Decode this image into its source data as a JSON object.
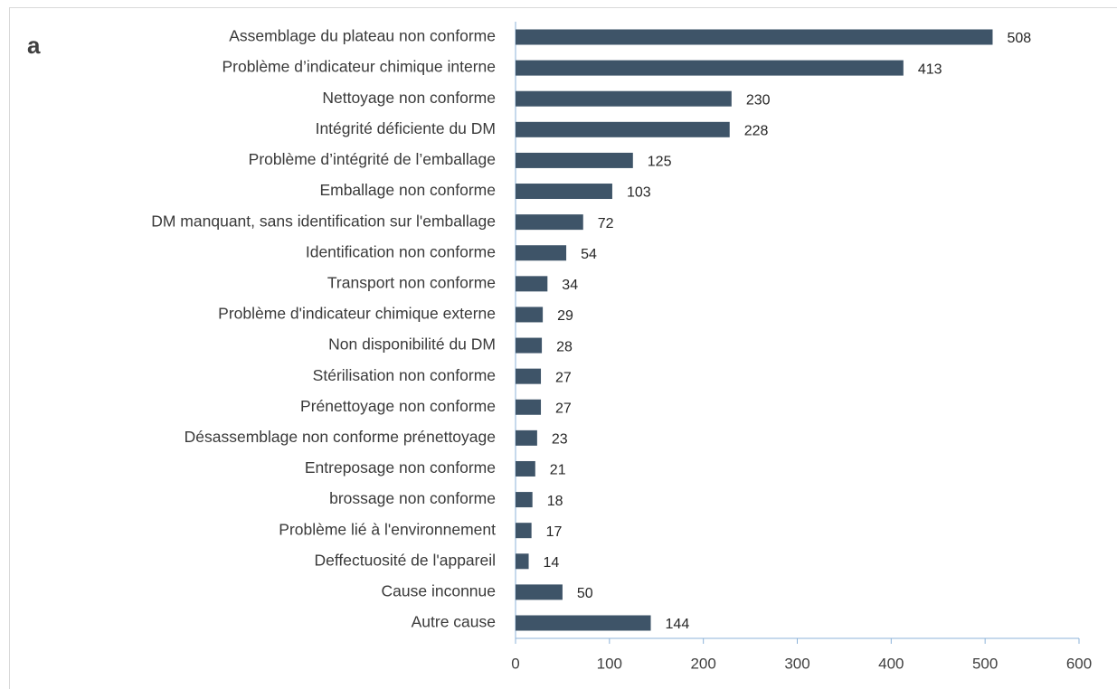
{
  "chart_data": {
    "type": "barh",
    "panel_label": "a",
    "categories": [
      "Assemblage du plateau non conforme",
      "Problème d’indicateur chimique interne",
      "Nettoyage non conforme",
      "Intégrité déficiente du DM",
      "Problème d’intégrité de l’emballage",
      "Emballage non conforme",
      "DM manquant, sans identification sur l'emballage",
      "Identification non conforme",
      "Transport non conforme",
      "Problème d'indicateur chimique externe",
      "Non disponibilité du DM",
      "Stérilisation non conforme",
      "Prénettoyage non conforme",
      "Désassemblage non conforme prénettoyage",
      "Entreposage non conforme",
      "brossage non conforme",
      "Problème lié à l'environnement",
      "Deffectuosité de l'appareil",
      "Cause inconnue",
      "Autre cause"
    ],
    "values": [
      508,
      413,
      230,
      228,
      125,
      103,
      72,
      54,
      34,
      29,
      28,
      27,
      27,
      23,
      21,
      18,
      17,
      14,
      50,
      144
    ],
    "color": "#3e5468",
    "axis_color": "#8db3d9",
    "xlim": [
      0,
      600
    ],
    "xticks": [
      0,
      100,
      200,
      300,
      400,
      500,
      600
    ],
    "grid": false
  }
}
